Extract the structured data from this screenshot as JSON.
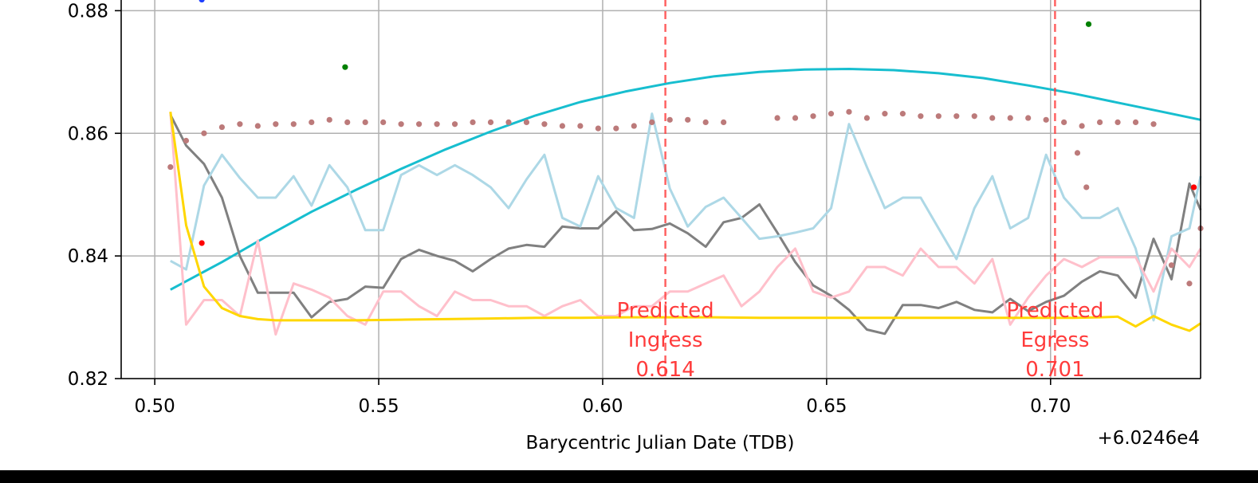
{
  "chart_data": {
    "type": "line",
    "title": "",
    "xlabel": "Barycentric Julian Date (TDB)",
    "ylabel": "",
    "x_offset_label": "+6.0246e4",
    "xlim": [
      0.4925,
      0.7335
    ],
    "ylim": [
      0.82,
      0.882
    ],
    "grid": true,
    "x_ticks": [
      0.5,
      0.55,
      0.6,
      0.65,
      0.7
    ],
    "x_tick_labels": [
      "0.50",
      "0.55",
      "0.60",
      "0.65",
      "0.70"
    ],
    "y_ticks": [
      0.82,
      0.84,
      0.86,
      0.88
    ],
    "y_tick_labels": [
      "0.82",
      "0.84",
      "0.86",
      "0.88"
    ],
    "annotations": [
      {
        "x": 0.614,
        "lines": [
          "Predicted",
          "Ingress",
          "0.614"
        ],
        "color": "#ff3b3b"
      },
      {
        "x": 0.701,
        "lines": [
          "Predicted",
          "Egress",
          "0.701"
        ],
        "color": "#ff3b3b"
      }
    ],
    "series": [
      {
        "style": "line",
        "color": "#17becf",
        "x": [
          0.5035,
          0.515,
          0.525,
          0.535,
          0.545,
          0.555,
          0.565,
          0.575,
          0.585,
          0.595,
          0.605,
          0.615,
          0.625,
          0.635,
          0.645,
          0.655,
          0.665,
          0.675,
          0.685,
          0.695,
          0.705,
          0.715,
          0.725,
          0.7335
        ],
        "y": [
          0.8345,
          0.839,
          0.8432,
          0.8472,
          0.8508,
          0.8542,
          0.8574,
          0.8603,
          0.8629,
          0.8651,
          0.8668,
          0.8682,
          0.8693,
          0.87,
          0.8704,
          0.8705,
          0.8703,
          0.8698,
          0.869,
          0.8678,
          0.8665,
          0.865,
          0.8635,
          0.8622
        ]
      },
      {
        "style": "line",
        "color": "#808080",
        "x": [
          0.5035,
          0.507,
          0.511,
          0.515,
          0.519,
          0.523,
          0.527,
          0.531,
          0.535,
          0.539,
          0.543,
          0.547,
          0.551,
          0.555,
          0.559,
          0.563,
          0.567,
          0.571,
          0.575,
          0.579,
          0.583,
          0.587,
          0.591,
          0.595,
          0.599,
          0.603,
          0.607,
          0.611,
          0.615,
          0.619,
          0.623,
          0.627,
          0.631,
          0.635,
          0.639,
          0.643,
          0.647,
          0.651,
          0.655,
          0.659,
          0.663,
          0.667,
          0.671,
          0.675,
          0.679,
          0.683,
          0.687,
          0.691,
          0.695,
          0.699,
          0.703,
          0.707,
          0.711,
          0.715,
          0.719,
          0.723,
          0.727,
          0.731,
          0.7335
        ],
        "y": [
          0.863,
          0.858,
          0.855,
          0.8495,
          0.84,
          0.834,
          0.834,
          0.834,
          0.83,
          0.8325,
          0.833,
          0.835,
          0.8348,
          0.8395,
          0.841,
          0.84,
          0.8392,
          0.8375,
          0.8395,
          0.8412,
          0.8418,
          0.8415,
          0.8448,
          0.8445,
          0.8445,
          0.8473,
          0.8442,
          0.8444,
          0.8453,
          0.8437,
          0.8415,
          0.8455,
          0.8462,
          0.8484,
          0.8438,
          0.839,
          0.8352,
          0.8335,
          0.8312,
          0.828,
          0.8273,
          0.832,
          0.832,
          0.8315,
          0.8325,
          0.8312,
          0.8308,
          0.833,
          0.831,
          0.8325,
          0.8335,
          0.8358,
          0.8375,
          0.8368,
          0.8332,
          0.8428,
          0.8362,
          0.8518,
          0.8475
        ]
      },
      {
        "style": "line",
        "color": "#add8e6",
        "x": [
          0.5035,
          0.507,
          0.511,
          0.515,
          0.519,
          0.523,
          0.527,
          0.531,
          0.535,
          0.539,
          0.543,
          0.547,
          0.551,
          0.555,
          0.559,
          0.563,
          0.567,
          0.571,
          0.575,
          0.579,
          0.583,
          0.587,
          0.591,
          0.595,
          0.599,
          0.603,
          0.607,
          0.611,
          0.615,
          0.619,
          0.623,
          0.627,
          0.631,
          0.635,
          0.639,
          0.643,
          0.647,
          0.651,
          0.655,
          0.659,
          0.663,
          0.667,
          0.671,
          0.675,
          0.679,
          0.683,
          0.687,
          0.691,
          0.695,
          0.699,
          0.703,
          0.707,
          0.711,
          0.715,
          0.719,
          0.723,
          0.727,
          0.731,
          0.7335
        ],
        "y": [
          0.8392,
          0.8378,
          0.8515,
          0.8565,
          0.8527,
          0.8495,
          0.8495,
          0.853,
          0.8482,
          0.8548,
          0.8512,
          0.8442,
          0.8442,
          0.8532,
          0.8548,
          0.8532,
          0.8548,
          0.8532,
          0.8512,
          0.8478,
          0.8525,
          0.8565,
          0.8462,
          0.8448,
          0.853,
          0.8478,
          0.8462,
          0.8632,
          0.851,
          0.8448,
          0.848,
          0.8495,
          0.8462,
          0.8428,
          0.8432,
          0.8438,
          0.8445,
          0.8478,
          0.8615,
          0.8545,
          0.8478,
          0.8495,
          0.8495,
          0.8445,
          0.8395,
          0.8478,
          0.853,
          0.8445,
          0.8462,
          0.8565,
          0.8495,
          0.8462,
          0.8462,
          0.8478,
          0.8412,
          0.8295,
          0.8432,
          0.8445,
          0.853
        ]
      },
      {
        "style": "line",
        "color": "#ffc0cb",
        "x": [
          0.5035,
          0.507,
          0.511,
          0.515,
          0.519,
          0.523,
          0.527,
          0.531,
          0.535,
          0.539,
          0.543,
          0.547,
          0.551,
          0.555,
          0.559,
          0.563,
          0.567,
          0.571,
          0.575,
          0.579,
          0.583,
          0.587,
          0.591,
          0.595,
          0.599,
          0.603,
          0.607,
          0.611,
          0.615,
          0.619,
          0.623,
          0.627,
          0.631,
          0.635,
          0.639,
          0.643,
          0.647,
          0.651,
          0.655,
          0.659,
          0.663,
          0.667,
          0.671,
          0.675,
          0.679,
          0.683,
          0.687,
          0.691,
          0.695,
          0.699,
          0.703,
          0.707,
          0.711,
          0.715,
          0.719,
          0.723,
          0.727,
          0.731,
          0.7335
        ],
        "y": [
          0.8635,
          0.8288,
          0.8328,
          0.8328,
          0.8302,
          0.8425,
          0.8272,
          0.8355,
          0.8345,
          0.8332,
          0.8302,
          0.8288,
          0.8342,
          0.8342,
          0.8318,
          0.8302,
          0.8342,
          0.8328,
          0.8328,
          0.8318,
          0.8318,
          0.8302,
          0.8318,
          0.8328,
          0.8302,
          0.8302,
          0.8318,
          0.8318,
          0.8342,
          0.8342,
          0.8355,
          0.8368,
          0.8318,
          0.8342,
          0.8382,
          0.8412,
          0.8342,
          0.8332,
          0.8342,
          0.8382,
          0.8382,
          0.8368,
          0.8412,
          0.8382,
          0.8382,
          0.8355,
          0.8395,
          0.8288,
          0.8332,
          0.8368,
          0.8395,
          0.8382,
          0.8398,
          0.8398,
          0.8398,
          0.8342,
          0.8412,
          0.8382,
          0.8412
        ]
      },
      {
        "style": "line",
        "color": "#ffd700",
        "x": [
          0.5035,
          0.507,
          0.511,
          0.515,
          0.519,
          0.523,
          0.527,
          0.535,
          0.545,
          0.555,
          0.565,
          0.575,
          0.585,
          0.595,
          0.605,
          0.615,
          0.625,
          0.635,
          0.645,
          0.655,
          0.665,
          0.675,
          0.685,
          0.695,
          0.705,
          0.711,
          0.715,
          0.719,
          0.723,
          0.727,
          0.731,
          0.7335
        ],
        "y": [
          0.8635,
          0.845,
          0.835,
          0.8315,
          0.8302,
          0.8297,
          0.8295,
          0.8295,
          0.8295,
          0.8296,
          0.8297,
          0.8298,
          0.8299,
          0.8299,
          0.83,
          0.83,
          0.83,
          0.8299,
          0.8299,
          0.8299,
          0.8299,
          0.8299,
          0.8299,
          0.8299,
          0.8299,
          0.83,
          0.8301,
          0.8285,
          0.8302,
          0.8288,
          0.8278,
          0.829
        ]
      },
      {
        "style": "dots",
        "color": "#bc7a7a",
        "x": [
          0.5035,
          0.507,
          0.511,
          0.515,
          0.519,
          0.523,
          0.527,
          0.531,
          0.535,
          0.539,
          0.543,
          0.547,
          0.551,
          0.555,
          0.559,
          0.563,
          0.567,
          0.571,
          0.575,
          0.579,
          0.583,
          0.587,
          0.591,
          0.595,
          0.599,
          0.603,
          0.607,
          0.611,
          0.615,
          0.619,
          0.623,
          0.627,
          0.639,
          0.643,
          0.647,
          0.651,
          0.655,
          0.659,
          0.663,
          0.667,
          0.671,
          0.675,
          0.679,
          0.683,
          0.687,
          0.691,
          0.695,
          0.699,
          0.703,
          0.707,
          0.711,
          0.715,
          0.719,
          0.723,
          0.727,
          0.731,
          0.7335,
          0.706,
          0.708
        ],
        "y": [
          0.8545,
          0.8588,
          0.86,
          0.861,
          0.8615,
          0.8612,
          0.8615,
          0.8615,
          0.8618,
          0.8622,
          0.8618,
          0.8618,
          0.8618,
          0.8615,
          0.8615,
          0.8615,
          0.8615,
          0.8618,
          0.8618,
          0.8618,
          0.8618,
          0.8615,
          0.8612,
          0.8612,
          0.8608,
          0.8608,
          0.8612,
          0.8618,
          0.8622,
          0.8622,
          0.8618,
          0.8618,
          0.8625,
          0.8625,
          0.8628,
          0.8632,
          0.8635,
          0.8625,
          0.8632,
          0.8632,
          0.8628,
          0.8628,
          0.8628,
          0.8628,
          0.8625,
          0.8625,
          0.8625,
          0.8622,
          0.8618,
          0.8612,
          0.8618,
          0.8618,
          0.8618,
          0.8615,
          0.8385,
          0.8355,
          0.8445,
          0.8568,
          0.8512
        ]
      },
      {
        "style": "dots",
        "color": "#ff0000",
        "x": [
          0.5105,
          0.732
        ],
        "y": [
          0.8421,
          0.8512
        ]
      },
      {
        "style": "dots",
        "color": "#008000",
        "x": [
          0.5425,
          0.7085
        ],
        "y": [
          0.8708,
          0.8778
        ]
      },
      {
        "style": "dots",
        "color": "#1f3fff",
        "x": [
          0.5105
        ],
        "y": [
          0.8818
        ]
      }
    ]
  }
}
